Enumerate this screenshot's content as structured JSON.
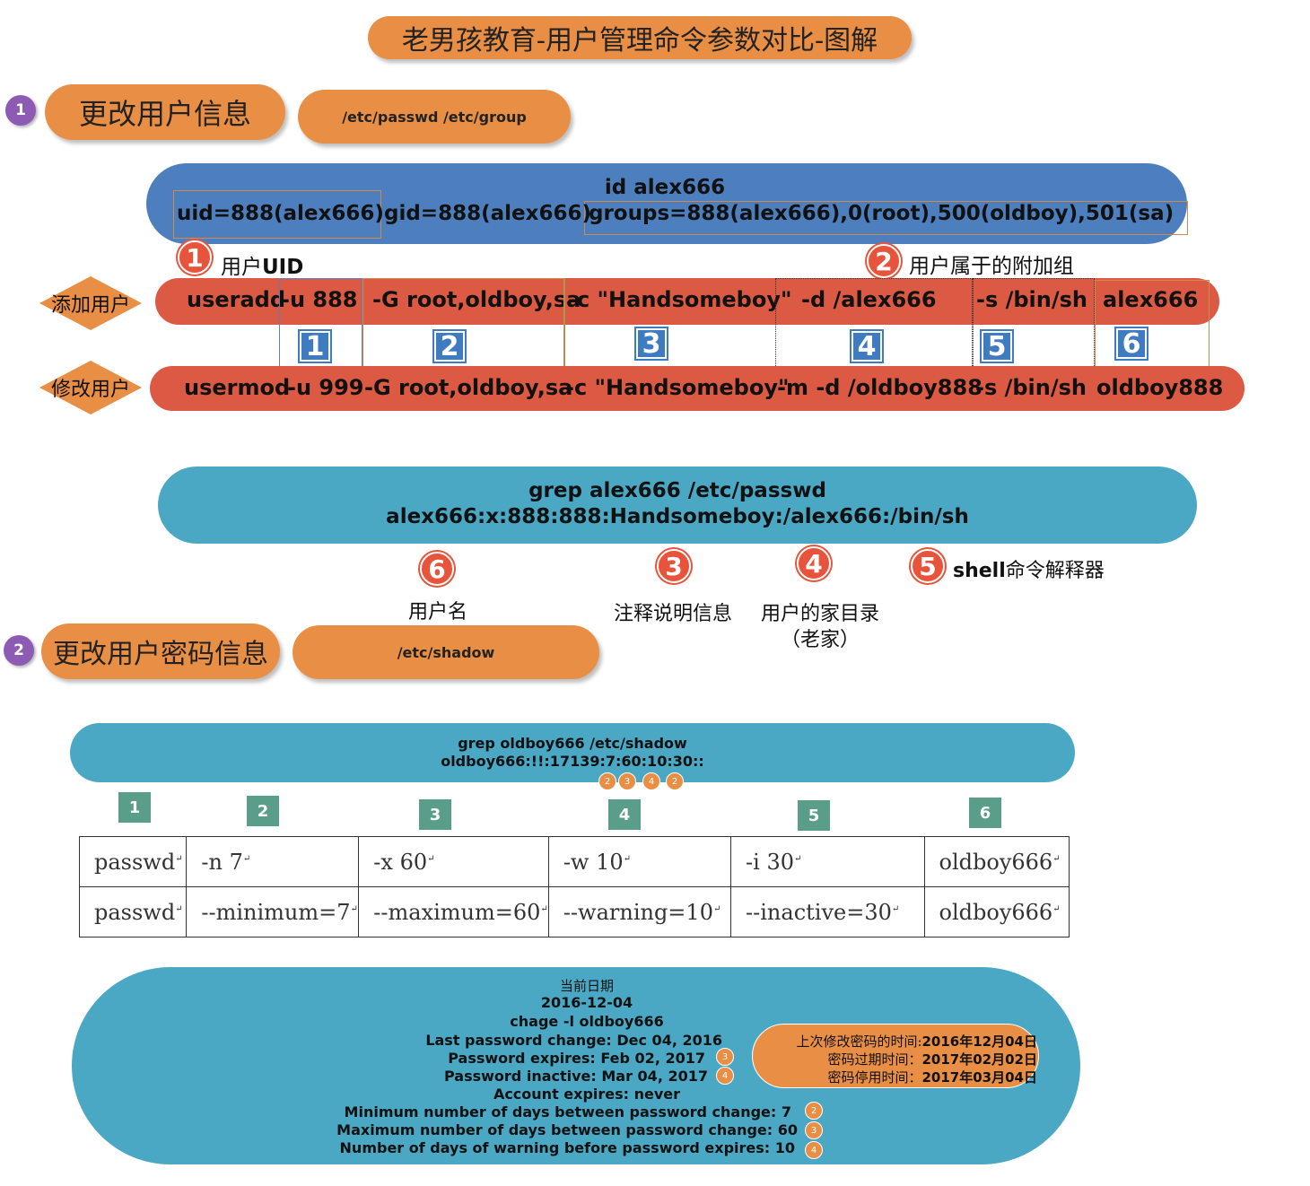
{
  "title": "老男孩教育-用户管理命令参数对比-图解",
  "section1": {
    "num": "1",
    "label": "更改用户信息",
    "files": "/etc/passwd /etc/group"
  },
  "id_block": {
    "cmd": "id alex666",
    "uid": "uid=888(alex666)",
    "gid": "gid=888(alex666)",
    "groups": "groups=888(alex666),0(root),500(oldboy),501(sa)"
  },
  "note_uid": {
    "num": "1",
    "text_cn": "用户",
    "text_en": "UID"
  },
  "note_groups": {
    "num": "2",
    "text": "用户属于的附加组"
  },
  "add_row": {
    "label": "添加用户",
    "cmd": "useradd",
    "p1": "-u 888",
    "p2": "-G root,oldboy,sa",
    "p3": "-c \"Handsomeboy\"",
    "p4": "-d /alex666",
    "p5": "-s /bin/sh",
    "p6": "alex666"
  },
  "col_numbers": [
    "1",
    "2",
    "3",
    "4",
    "5",
    "6"
  ],
  "mod_row": {
    "label": "修改用户",
    "cmd": "usermod",
    "p1": "-u 999",
    "p2": "-G root,oldboy,sa",
    "p3": "-c \"Handsomeboy\"",
    "p4": "-m -d /oldboy888",
    "p5": "-s /bin/sh",
    "p6": "oldboy888"
  },
  "grep_passwd": {
    "cmd": "grep alex666 /etc/passwd",
    "line": "alex666:x:888:888:Handsomeboy:/alex666:/bin/sh"
  },
  "passwd_fields": [
    {
      "num": "6",
      "text": "用户名"
    },
    {
      "num": "3",
      "text": "注释说明信息"
    },
    {
      "num": "4",
      "text": "用户的家目录",
      "text2": "（老家）"
    },
    {
      "num": "5",
      "text_en": "shell",
      "text": "命令解释器"
    }
  ],
  "section2": {
    "num": "2",
    "label": "更改用户密码信息",
    "files": "/etc/shadow"
  },
  "grep_shadow": {
    "cmd": "grep oldboy666 /etc/shadow",
    "line": "oldboy666:!!:17139:7:60:10:30::",
    "markers": [
      "2",
      "3",
      "4",
      "2"
    ]
  },
  "pw_table": {
    "col_numbers": [
      "1",
      "2",
      "3",
      "4",
      "5",
      "6"
    ],
    "rows": [
      [
        "passwd",
        "-n 7",
        "-x 60",
        "-w 10",
        "-i 30",
        "oldboy666"
      ],
      [
        "passwd",
        "--minimum=7",
        "--maximum=60",
        "--warning=10",
        "--inactive=30",
        "oldboy666"
      ]
    ],
    "mark": "↵"
  },
  "chage": {
    "date_label": "当前日期",
    "date": "2016-12-04",
    "cmd": "chage -l oldboy666",
    "lines": [
      {
        "text": "Last password change: Dec 04, 2016",
        "mark": ""
      },
      {
        "text": "Password expires: Feb 02, 2017",
        "mark": "3"
      },
      {
        "text": "Password inactive: Mar 04, 2017",
        "mark": "4"
      },
      {
        "text": "Account expires: never",
        "mark": ""
      },
      {
        "text": "Minimum number of days between password change: 7",
        "mark": "2"
      },
      {
        "text": "Maximum number of days between password change: 60",
        "mark": "3"
      },
      {
        "text": "Number of days of warning before password expires: 10",
        "mark": "4"
      }
    ],
    "notes": [
      {
        "label": "上次修改密码的时间:",
        "value": "2016年12月04日"
      },
      {
        "label": "密码过期时间：",
        "value": "2017年02月02日"
      },
      {
        "label": "密码停用时间：",
        "value": "2017年03月04日"
      }
    ]
  },
  "colors": {
    "orange": "#e98f45",
    "red": "#dc5a43",
    "blue": "#4d7fbf",
    "teal": "#4aa8c4",
    "purple": "#8e5bb4",
    "green": "#5a9e8a"
  }
}
